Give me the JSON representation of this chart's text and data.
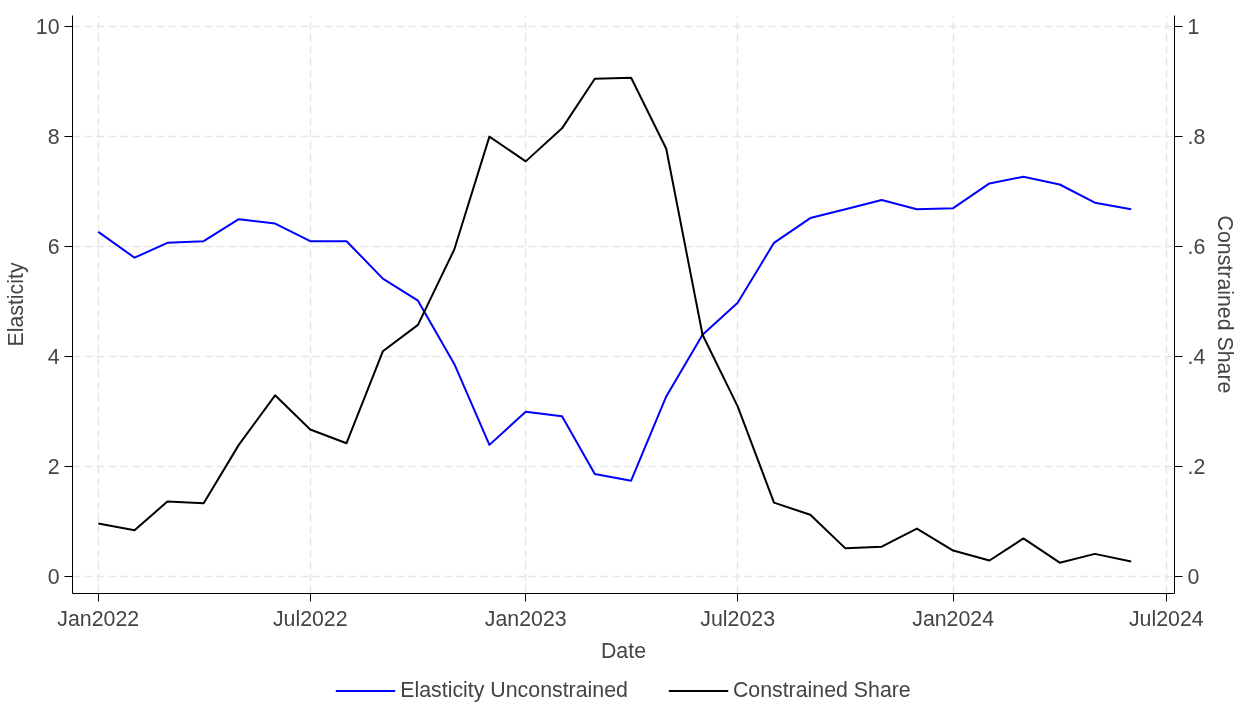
{
  "chart_data": {
    "type": "line",
    "xlabel": "Date",
    "ylabel": "Elasticity",
    "y2label": "Constrained Share",
    "x": [
      "2022-01",
      "2022-02",
      "2022-03",
      "2022-04",
      "2022-05",
      "2022-06",
      "2022-07",
      "2022-08",
      "2022-09",
      "2022-10",
      "2022-11",
      "2022-12",
      "2023-01",
      "2023-02",
      "2023-03",
      "2023-04",
      "2023-05",
      "2023-06",
      "2023-07",
      "2023-08",
      "2023-09",
      "2023-10",
      "2023-11",
      "2023-12",
      "2024-01",
      "2024-02",
      "2024-03",
      "2024-04",
      "2024-05",
      "2024-06"
    ],
    "series": [
      {
        "name": "Elasticity Unconstrained",
        "color": "#0000ff",
        "values": [
          6.27,
          5.8,
          6.07,
          6.1,
          6.5,
          6.42,
          6.1,
          6.1,
          5.42,
          5.02,
          3.87,
          2.4,
          3.0,
          2.92,
          1.87,
          1.75,
          3.28,
          4.4,
          4.98,
          6.07,
          6.52,
          6.68,
          6.85,
          6.68,
          6.7,
          7.15,
          7.27,
          7.13,
          6.8,
          6.68
        ]
      },
      {
        "name": "Constrained Share",
        "color": "#000000",
        "axis": "y2",
        "values": [
          0.097,
          0.085,
          0.137,
          0.134,
          0.24,
          0.33,
          0.268,
          0.243,
          0.41,
          0.458,
          0.595,
          0.8,
          0.755,
          0.815,
          0.905,
          0.907,
          0.778,
          0.44,
          0.31,
          0.135,
          0.113,
          0.052,
          0.055,
          0.088,
          0.048,
          0.03,
          0.07,
          0.026,
          0.042,
          0.028
        ]
      }
    ],
    "xlim": [
      "2021-12-10",
      "2024-07-08"
    ],
    "xticks": [
      {
        "value": "2022-01",
        "label": "Jan2022"
      },
      {
        "value": "2022-07",
        "label": "Jul2022"
      },
      {
        "value": "2023-01",
        "label": "Jan2023"
      },
      {
        "value": "2023-07",
        "label": "Jul2023"
      },
      {
        "value": "2024-01",
        "label": "Jan2024"
      },
      {
        "value": "2024-07",
        "label": "Jul2024"
      }
    ],
    "ylim": [
      -0.3,
      10.2
    ],
    "yticks": [
      0,
      2,
      4,
      6,
      8,
      10
    ],
    "y2lim": [
      -0.03,
      1.02
    ],
    "y2ticks": [
      0,
      {
        "value": 0.2,
        "label": ".2"
      },
      {
        "value": 0.4,
        "label": ".4"
      },
      {
        "value": 0.6,
        "label": ".6"
      },
      {
        "value": 0.8,
        "label": ".8"
      },
      1
    ],
    "grid": true,
    "legend": "bottom",
    "line_style": "solid"
  }
}
